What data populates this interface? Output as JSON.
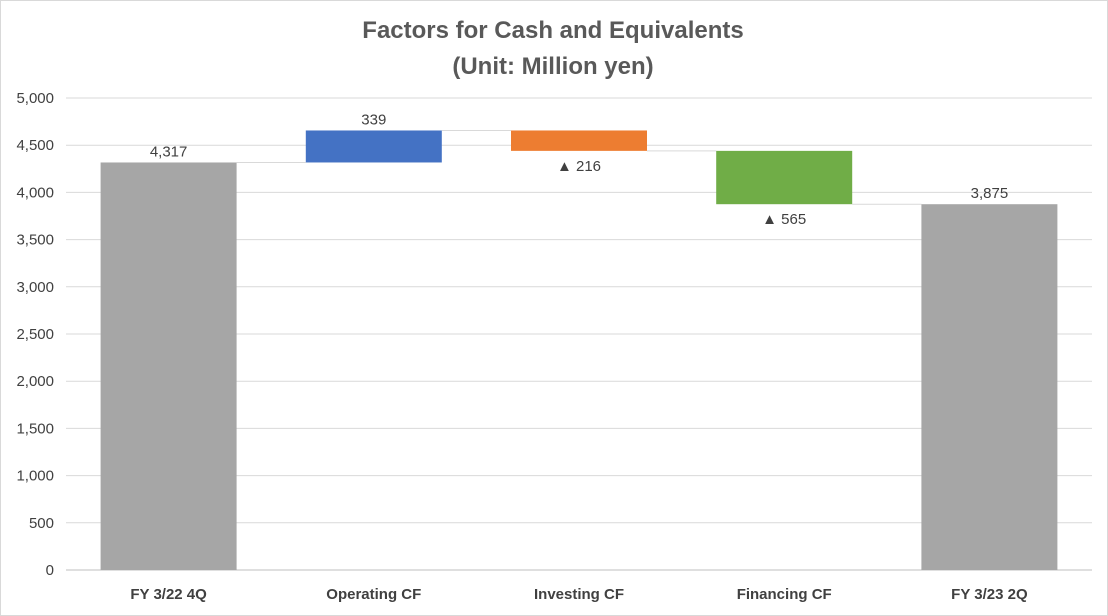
{
  "chart_data": {
    "type": "bar",
    "subtype": "waterfall",
    "title": "Factors for Cash and Equivalents",
    "subtitle": "(Unit: Million yen)",
    "categories": [
      "FY 3/22 4Q",
      "Operating CF",
      "Investing CF",
      "Financing CF",
      "FY 3/23 2Q"
    ],
    "bars": [
      {
        "category": "FY 3/22 4Q",
        "kind": "total",
        "start": 0,
        "end": 4317,
        "label": "4,317",
        "color": "#a6a6a6"
      },
      {
        "category": "Operating CF",
        "kind": "increase",
        "start": 4317,
        "end": 4656,
        "label": "339",
        "color": "#4472c4"
      },
      {
        "category": "Investing CF",
        "kind": "decrease",
        "start": 4656,
        "end": 4440,
        "label": "▲ 216",
        "color": "#ed7d31"
      },
      {
        "category": "Financing CF",
        "kind": "decrease",
        "start": 4440,
        "end": 3875,
        "label": "▲ 565",
        "color": "#70ad47"
      },
      {
        "category": "FY 3/23 2Q",
        "kind": "total",
        "start": 0,
        "end": 3875,
        "label": "3,875",
        "color": "#a6a6a6"
      }
    ],
    "ylim": [
      0,
      5000
    ],
    "yticks": [
      "0",
      "500",
      "1,000",
      "1,500",
      "2,000",
      "2,500",
      "3,000",
      "3,500",
      "4,000",
      "4,500",
      "5,000"
    ],
    "ytick_values": [
      0,
      500,
      1000,
      1500,
      2000,
      2500,
      3000,
      3500,
      4000,
      4500,
      5000
    ],
    "grid": true,
    "legend": "none",
    "xlabel": "",
    "ylabel": ""
  }
}
